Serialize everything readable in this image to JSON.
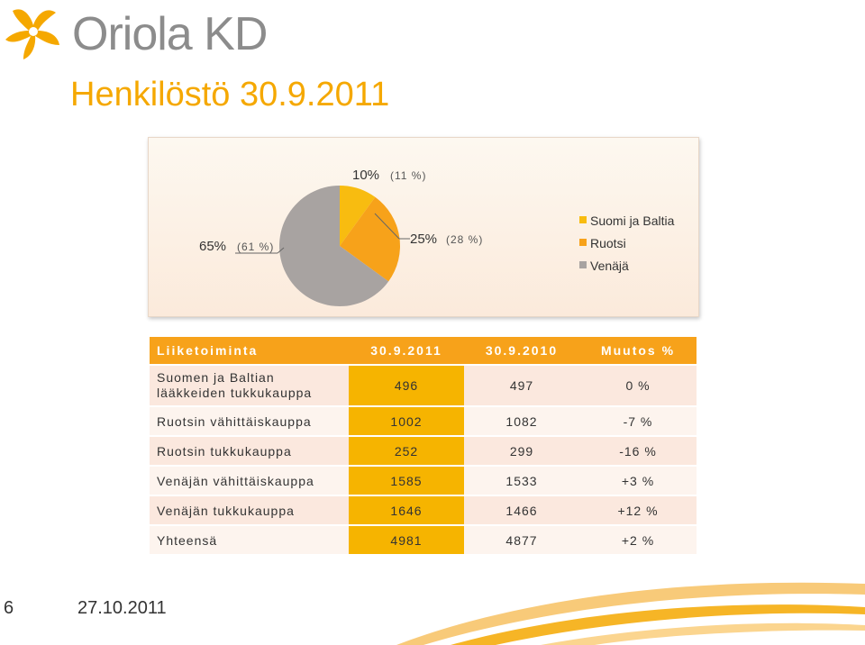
{
  "brand": {
    "logo_text": "Oriola KD",
    "accent_color": "#f5a800"
  },
  "slide": {
    "title": "Henkilöstö 30.9.2011",
    "page_number": "6",
    "date": "27.10.2011"
  },
  "chart_data": {
    "type": "pie",
    "categories": [
      "Suomi ja Baltia",
      "Ruotsi",
      "Venäjä"
    ],
    "values": [
      10,
      25,
      65
    ],
    "previous_values_labels": [
      "(11 %)",
      "(28 %)",
      "(61 %)"
    ],
    "labels": [
      "10%",
      "25%",
      "65%"
    ],
    "colors": [
      "#f8bc10",
      "#f7a21a",
      "#a8a3a1"
    ],
    "legend_position": "right"
  },
  "table": {
    "headers": [
      "Liiketoiminta",
      "30.9.2011",
      "30.9.2010",
      "Muutos %"
    ],
    "rows": [
      {
        "label": "Suomen ja Baltian lääkkeiden tukkukauppa",
        "v2011": "496",
        "v2010": "497",
        "change": "0 %"
      },
      {
        "label": "Ruotsin vähittäiskauppa",
        "v2011": "1002",
        "v2010": "1082",
        "change": "-7 %"
      },
      {
        "label": "Ruotsin tukkukauppa",
        "v2011": "252",
        "v2010": "299",
        "change": "-16 %"
      },
      {
        "label": "Venäjän vähittäiskauppa",
        "v2011": "1585",
        "v2010": "1533",
        "change": "+3 %"
      },
      {
        "label": "Venäjän tukkukauppa",
        "v2011": "1646",
        "v2010": "1466",
        "change": "+12 %"
      },
      {
        "label": "Yhteensä",
        "v2011": "4981",
        "v2010": "4877",
        "change": "+2 %"
      }
    ]
  }
}
